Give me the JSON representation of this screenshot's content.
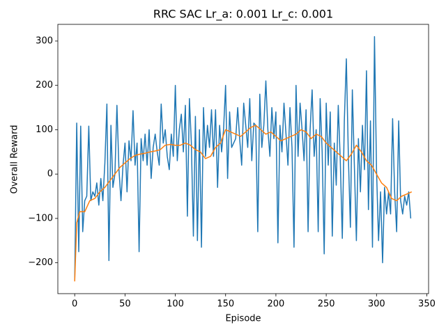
{
  "chart_data": {
    "type": "line",
    "title": "RRC SAC Lr_a: 0.001 Lr_c: 0.001",
    "x_label": "Episode",
    "y_label": "Overall Reward",
    "xlim": [
      -16.75,
      351.75
    ],
    "ylim": [
      -269.6,
      337.6
    ],
    "xticks": [
      0,
      50,
      100,
      150,
      200,
      250,
      300,
      350
    ],
    "yticks": [
      {
        "value": -200,
        "label": "−200"
      },
      {
        "value": -100,
        "label": "−100"
      },
      0,
      100,
      200,
      300
    ],
    "series": [
      {
        "color": "#1f77b4",
        "x": [
          0,
          2,
          4,
          6,
          8,
          10,
          12,
          14,
          16,
          18,
          20,
          22,
          24,
          26,
          28,
          30,
          32,
          34,
          36,
          38,
          40,
          42,
          44,
          46,
          48,
          50,
          52,
          54,
          56,
          58,
          60,
          62,
          64,
          66,
          68,
          70,
          72,
          74,
          76,
          78,
          80,
          82,
          84,
          86,
          88,
          90,
          92,
          94,
          96,
          98,
          100,
          102,
          104,
          106,
          108,
          110,
          112,
          114,
          116,
          118,
          120,
          122,
          124,
          126,
          128,
          130,
          132,
          134,
          136,
          138,
          140,
          142,
          144,
          146,
          148,
          150,
          152,
          154,
          156,
          158,
          160,
          162,
          164,
          166,
          168,
          170,
          172,
          174,
          176,
          178,
          180,
          182,
          184,
          186,
          188,
          190,
          192,
          194,
          196,
          198,
          200,
          202,
          204,
          206,
          208,
          210,
          212,
          214,
          216,
          218,
          220,
          222,
          224,
          226,
          228,
          230,
          232,
          234,
          236,
          238,
          240,
          242,
          244,
          246,
          248,
          250,
          252,
          254,
          256,
          258,
          260,
          262,
          264,
          266,
          268,
          270,
          272,
          274,
          276,
          278,
          280,
          282,
          284,
          286,
          288,
          290,
          292,
          294,
          296,
          298,
          300,
          302,
          304,
          306,
          308,
          310,
          312,
          314,
          316,
          318,
          320,
          322,
          324,
          326,
          328,
          330,
          332,
          334
        ],
        "values": [
          -240,
          115,
          -175,
          108,
          -130,
          -60,
          -50,
          108,
          -60,
          -40,
          -50,
          -20,
          -70,
          -10,
          -60,
          25,
          158,
          -195,
          110,
          -30,
          0,
          155,
          10,
          -60,
          20,
          70,
          -40,
          75,
          30,
          143,
          20,
          70,
          -175,
          80,
          30,
          90,
          20,
          100,
          -10,
          60,
          90,
          50,
          20,
          158,
          70,
          100,
          40,
          10,
          90,
          40,
          200,
          30,
          100,
          135,
          50,
          155,
          -95,
          170,
          70,
          -140,
          130,
          -150,
          100,
          -165,
          150,
          40,
          110,
          60,
          145,
          40,
          145,
          -30,
          110,
          50,
          100,
          200,
          -10,
          140,
          60,
          70,
          80,
          150,
          80,
          20,
          160,
          110,
          60,
          170,
          30,
          115,
          110,
          -130,
          180,
          60,
          110,
          210,
          100,
          40,
          150,
          80,
          140,
          -155,
          110,
          50,
          160,
          90,
          20,
          150,
          60,
          -165,
          200,
          40,
          160,
          100,
          30,
          145,
          -130,
          100,
          190,
          40,
          100,
          -130,
          170,
          50,
          -180,
          160,
          20,
          140,
          -140,
          70,
          -25,
          155,
          30,
          -145,
          120,
          260,
          40,
          -120,
          190,
          20,
          -150,
          80,
          -40,
          110,
          10,
          233,
          -80,
          120,
          -165,
          310,
          10,
          -150,
          -40,
          -200,
          -30,
          -90,
          -40,
          -90,
          125,
          -40,
          -130,
          120,
          -60,
          -90,
          -50,
          -70,
          -40,
          -100
        ]
      },
      {
        "color": "#ff7f0e",
        "x": [
          0,
          2,
          5,
          10,
          15,
          20,
          25,
          30,
          35,
          40,
          45,
          50,
          55,
          60,
          65,
          70,
          75,
          80,
          85,
          90,
          95,
          100,
          105,
          110,
          115,
          120,
          125,
          130,
          135,
          140,
          145,
          150,
          155,
          160,
          165,
          170,
          175,
          180,
          185,
          190,
          195,
          200,
          205,
          210,
          215,
          220,
          225,
          230,
          235,
          240,
          245,
          250,
          255,
          260,
          265,
          270,
          275,
          280,
          285,
          290,
          295,
          300,
          305,
          310,
          315,
          320,
          325,
          330,
          335
        ],
        "values": [
          -242,
          -110,
          -85,
          -85,
          -60,
          -55,
          -40,
          -30,
          -15,
          0,
          15,
          25,
          35,
          42,
          45,
          47,
          50,
          52,
          55,
          65,
          67,
          65,
          65,
          70,
          65,
          55,
          50,
          35,
          40,
          60,
          70,
          100,
          95,
          90,
          85,
          95,
          105,
          110,
          100,
          90,
          95,
          85,
          75,
          80,
          85,
          90,
          100,
          95,
          80,
          90,
          85,
          70,
          60,
          50,
          40,
          30,
          45,
          65,
          50,
          30,
          20,
          0,
          -20,
          -30,
          -55,
          -60,
          -50,
          -45,
          -40
        ]
      }
    ]
  }
}
